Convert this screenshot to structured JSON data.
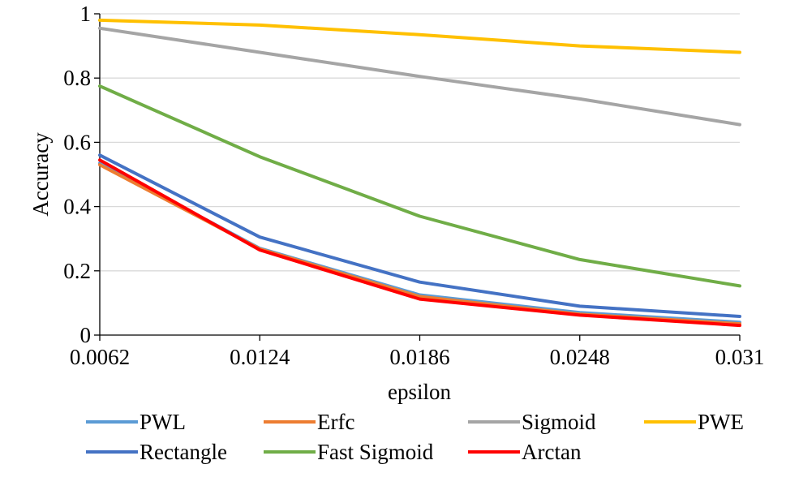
{
  "chart_data": {
    "type": "line",
    "title": "",
    "xlabel": "epsilon",
    "ylabel": "Accuracy",
    "categories": [
      "0.0062",
      "0.0124",
      "0.0186",
      "0.0248",
      "0.031"
    ],
    "yticks": [
      "0",
      "0.2",
      "0.4",
      "0.6",
      "0.8",
      "1"
    ],
    "ylim": [
      0,
      1
    ],
    "grid": true,
    "legend_position": "bottom",
    "series": [
      {
        "name": "PWL",
        "color": "#5b9bd5",
        "values": [
          0.535,
          0.27,
          0.125,
          0.07,
          0.04
        ]
      },
      {
        "name": "Erfc",
        "color": "#ed7d31",
        "values": [
          0.53,
          0.268,
          0.12,
          0.065,
          0.035
        ]
      },
      {
        "name": "Sigmoid",
        "color": "#a5a5a5",
        "values": [
          0.955,
          0.88,
          0.805,
          0.735,
          0.655
        ]
      },
      {
        "name": "PWE",
        "color": "#ffc000",
        "values": [
          0.98,
          0.965,
          0.935,
          0.9,
          0.88
        ]
      },
      {
        "name": "Rectangle",
        "color": "#4472c4",
        "values": [
          0.56,
          0.305,
          0.165,
          0.09,
          0.058
        ]
      },
      {
        "name": "Fast Sigmoid",
        "color": "#70ad47",
        "values": [
          0.775,
          0.555,
          0.37,
          0.235,
          0.153
        ]
      },
      {
        "name": "Arctan",
        "color": "#ff0000",
        "values": [
          0.545,
          0.265,
          0.112,
          0.062,
          0.03
        ]
      }
    ]
  }
}
